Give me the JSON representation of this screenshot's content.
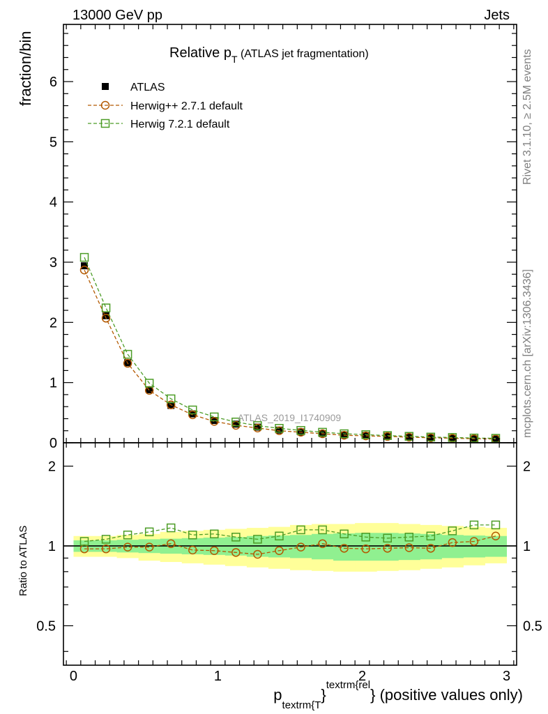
{
  "header": {
    "left": "13000 GeV pp",
    "right": "Jets"
  },
  "side": {
    "rivet": "Rivet 3.1.10, ≥ 2.5M events",
    "mcplots": "mcplots.cern.ch [arXiv:1306.3436]"
  },
  "chart_data": {
    "type": "scatter",
    "title": {
      "main": "Relative p",
      "sub": "T",
      "rest": " (ATLAS jet fragmentation)"
    },
    "ylabel": "fraction/bin",
    "ratio_ylabel": "Ratio to ATLAS",
    "xlabel": {
      "p": "p",
      "sub": "textrm{T",
      "brace1": "}",
      "sup": "textrm{rel",
      "brace2": "}",
      "rest": " (positive values only)"
    },
    "watermark": "ATLAS_2019_I1740909",
    "xlim": [
      -0.07,
      3.07
    ],
    "ylim": [
      0,
      6.95
    ],
    "ratio_ylim": [
      0.355,
      2.45
    ],
    "xticks": [
      "0",
      "1",
      "2",
      "3"
    ],
    "yticks": [
      "0",
      "1",
      "2",
      "3",
      "4",
      "5",
      "6"
    ],
    "ratio_yticks": [
      "0.5",
      "1",
      "2"
    ],
    "x": [
      0.075,
      0.225,
      0.375,
      0.525,
      0.675,
      0.825,
      0.975,
      1.125,
      1.275,
      1.425,
      1.575,
      1.725,
      1.875,
      2.025,
      2.175,
      2.325,
      2.475,
      2.625,
      2.775,
      2.925
    ],
    "series": [
      {
        "name": "ATLAS",
        "marker": "filled-square",
        "color": "#000000",
        "values": [
          2.94,
          2.11,
          1.33,
          0.88,
          0.62,
          0.48,
          0.37,
          0.31,
          0.26,
          0.21,
          0.18,
          0.15,
          0.13,
          0.12,
          0.11,
          0.095,
          0.085,
          0.075,
          0.065,
          0.06
        ]
      },
      {
        "name": "Herwig++ 2.7.1 default",
        "marker": "open-circle",
        "color": "#b35900",
        "values": [
          2.87,
          2.07,
          1.32,
          0.87,
          0.63,
          0.465,
          0.355,
          0.29,
          0.245,
          0.2,
          0.175,
          0.15,
          0.125,
          0.115,
          0.105,
          0.093,
          0.083,
          0.076,
          0.066,
          0.063
        ],
        "ratio": [
          0.975,
          0.975,
          0.99,
          0.99,
          1.02,
          0.965,
          0.96,
          0.945,
          0.93,
          0.96,
          0.99,
          1.02,
          0.98,
          0.975,
          0.98,
          0.985,
          0.98,
          1.03,
          1.04,
          1.09
        ]
      },
      {
        "name": "Herwig 7.2.1 default",
        "marker": "open-square",
        "color": "#4c9c26",
        "values": [
          3.08,
          2.24,
          1.47,
          0.99,
          0.73,
          0.545,
          0.43,
          0.345,
          0.285,
          0.24,
          0.205,
          0.175,
          0.15,
          0.135,
          0.12,
          0.107,
          0.095,
          0.088,
          0.079,
          0.074
        ],
        "ratio": [
          1.04,
          1.06,
          1.1,
          1.13,
          1.17,
          1.1,
          1.11,
          1.08,
          1.06,
          1.09,
          1.15,
          1.15,
          1.11,
          1.08,
          1.07,
          1.08,
          1.09,
          1.14,
          1.2,
          1.2
        ]
      }
    ],
    "ratio_band_outer": {
      "color": "#ffff99",
      "lo": [
        0.91,
        0.91,
        0.9,
        0.88,
        0.87,
        0.86,
        0.85,
        0.84,
        0.83,
        0.82,
        0.81,
        0.805,
        0.8,
        0.8,
        0.805,
        0.81,
        0.82,
        0.83,
        0.845,
        0.86
      ],
      "hi": [
        1.09,
        1.09,
        1.1,
        1.11,
        1.13,
        1.14,
        1.15,
        1.16,
        1.17,
        1.18,
        1.2,
        1.21,
        1.21,
        1.22,
        1.22,
        1.21,
        1.2,
        1.19,
        1.18,
        1.17
      ]
    },
    "ratio_band_inner": {
      "color": "#90f090",
      "lo": [
        0.95,
        0.95,
        0.945,
        0.94,
        0.935,
        0.93,
        0.925,
        0.92,
        0.91,
        0.905,
        0.9,
        0.89,
        0.88,
        0.88,
        0.88,
        0.885,
        0.89,
        0.9,
        0.905,
        0.91
      ],
      "hi": [
        1.05,
        1.05,
        1.055,
        1.06,
        1.065,
        1.07,
        1.075,
        1.08,
        1.09,
        1.095,
        1.1,
        1.11,
        1.115,
        1.12,
        1.12,
        1.115,
        1.11,
        1.1,
        1.095,
        1.09
      ]
    }
  }
}
